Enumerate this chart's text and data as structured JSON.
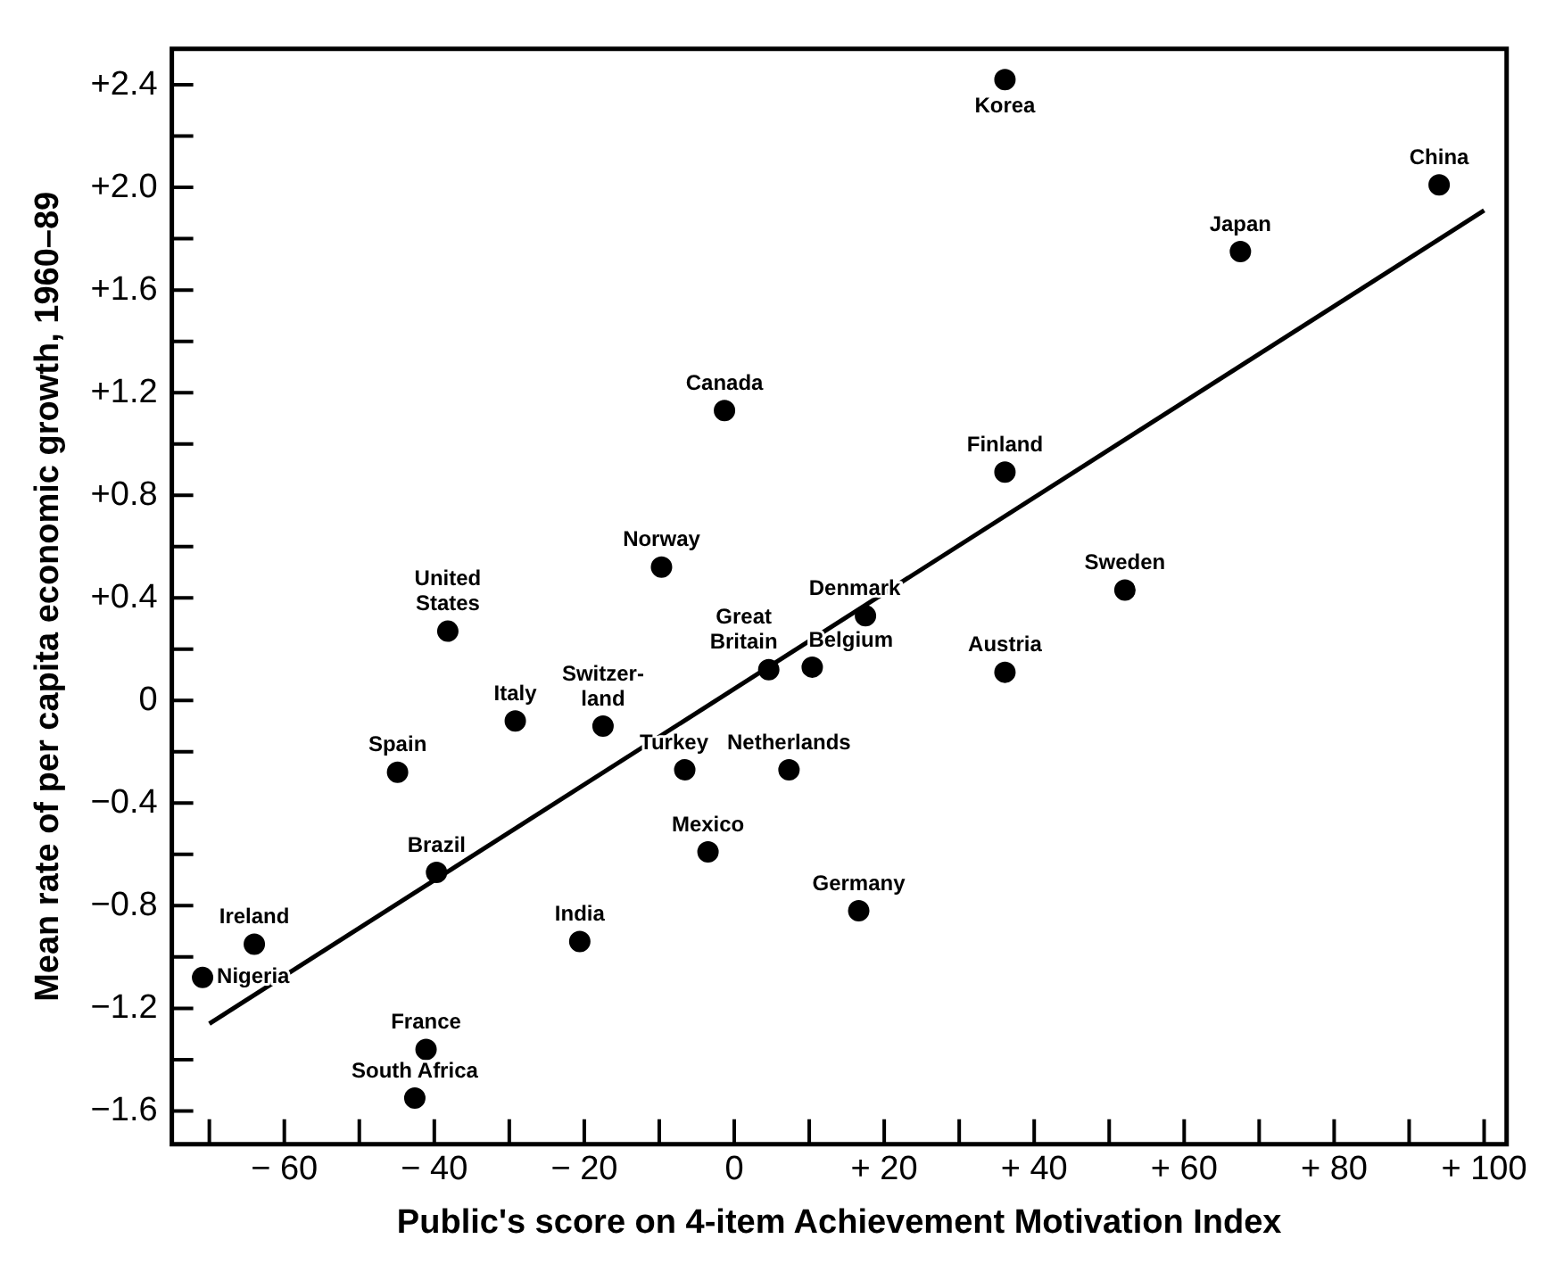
{
  "chart_data": {
    "type": "scatter",
    "xlabel": "Public's score on 4-item Achievement Motivation Index",
    "ylabel": "Mean rate of per capita economic growth, 1960–89",
    "xlim": [
      -75,
      103
    ],
    "ylim": [
      -1.73,
      2.54
    ],
    "xticks": [
      {
        "value": -70,
        "label": null
      },
      {
        "value": -60,
        "label": "− 60"
      },
      {
        "value": -50,
        "label": null
      },
      {
        "value": -40,
        "label": "− 40"
      },
      {
        "value": -30,
        "label": null
      },
      {
        "value": -20,
        "label": "− 20"
      },
      {
        "value": -10,
        "label": null
      },
      0,
      {
        "value": 10,
        "label": null
      },
      {
        "value": 20,
        "label": "+ 20"
      },
      {
        "value": 30,
        "label": null
      },
      {
        "value": 40,
        "label": "+ 40"
      },
      {
        "value": 50,
        "label": null
      },
      {
        "value": 60,
        "label": "+ 60"
      },
      {
        "value": 70,
        "label": null
      },
      {
        "value": 80,
        "label": "+ 80"
      },
      {
        "value": 90,
        "label": null
      },
      {
        "value": 100,
        "label": "+ 100"
      }
    ],
    "yticks": [
      {
        "value": -1.6,
        "label": "−1.6"
      },
      {
        "value": -1.4,
        "label": null
      },
      {
        "value": -1.2,
        "label": "−1.2"
      },
      {
        "value": -1.0,
        "label": null
      },
      {
        "value": -0.8,
        "label": "−0.8"
      },
      {
        "value": -0.6,
        "label": null
      },
      {
        "value": -0.4,
        "label": "−0.4"
      },
      {
        "value": -0.2,
        "label": null
      },
      0,
      {
        "value": 0.2,
        "label": null
      },
      {
        "value": 0.4,
        "label": "+0.4"
      },
      {
        "value": 0.6,
        "label": null
      },
      {
        "value": 0.8,
        "label": "+0.8"
      },
      {
        "value": 1.0,
        "label": null
      },
      {
        "value": 1.2,
        "label": "+1.2"
      },
      {
        "value": 1.4,
        "label": null
      },
      {
        "value": 1.6,
        "label": "+1.6"
      },
      {
        "value": 1.8,
        "label": null
      },
      {
        "value": 2.0,
        "label": "+2.0"
      },
      {
        "value": 2.2,
        "label": null
      },
      {
        "value": 2.4,
        "label": "+2.4"
      }
    ],
    "grid": false,
    "legend": false,
    "marker": "circle",
    "series": [
      {
        "type": "scatter",
        "color": "#000000",
        "x": [
          36.1,
          94,
          67.5,
          -1.3,
          36.1,
          -9.7,
          52.1,
          17.5,
          4.6,
          10.4,
          36.1,
          -38.2,
          -29.2,
          -17.5,
          -44.9,
          -6.6,
          7.3,
          -3.5,
          -39.7,
          16.6,
          -20.6,
          -64.0,
          -70.9,
          -41.1,
          -42.6
        ],
        "values": [
          2.42,
          2.01,
          1.75,
          1.13,
          0.89,
          0.52,
          0.43,
          0.33,
          0.12,
          0.13,
          0.11,
          0.27,
          -0.08,
          -0.1,
          -0.28,
          -0.27,
          -0.27,
          -0.59,
          -0.67,
          -0.82,
          -0.94,
          -0.95,
          -1.08,
          -1.36,
          -1.55
        ]
      },
      {
        "type": "line",
        "color": "#000000",
        "marker": "none",
        "line_style": "solid",
        "x": [
          -70,
          100
        ],
        "values": [
          -1.26,
          1.91
        ]
      }
    ],
    "annotations": [
      {
        "text": "Korea",
        "x": 36.1,
        "y": 2.42
      },
      {
        "text": "China",
        "x": 94,
        "y": 2.01
      },
      {
        "text": "Japan",
        "x": 67.5,
        "y": 1.75
      },
      {
        "text": "Canada",
        "x": -1.3,
        "y": 1.13
      },
      {
        "text": "Finland",
        "x": 36.1,
        "y": 0.89
      },
      {
        "text": "Norway",
        "x": -9.7,
        "y": 0.52
      },
      {
        "text": "Sweden",
        "x": 52.1,
        "y": 0.43
      },
      {
        "text": "Denmark",
        "x": 17.5,
        "y": 0.33
      },
      {
        "text": "Great\nBritain",
        "x": 4.6,
        "y": 0.12
      },
      {
        "text": "Belgium",
        "x": 10.4,
        "y": 0.13
      },
      {
        "text": "Austria",
        "x": 36.1,
        "y": 0.11
      },
      {
        "text": "United\nStates",
        "x": -38.2,
        "y": 0.27
      },
      {
        "text": "Italy",
        "x": -29.2,
        "y": -0.08
      },
      {
        "text": "Switzer-\nland",
        "x": -17.5,
        "y": -0.1
      },
      {
        "text": "Spain",
        "x": -44.9,
        "y": -0.28
      },
      {
        "text": "Turkey",
        "x": -6.6,
        "y": -0.27
      },
      {
        "text": "Netherlands",
        "x": 7.3,
        "y": -0.27
      },
      {
        "text": "Mexico",
        "x": -3.5,
        "y": -0.59
      },
      {
        "text": "Brazil",
        "x": -39.7,
        "y": -0.67
      },
      {
        "text": "Germany",
        "x": 16.6,
        "y": -0.82
      },
      {
        "text": "India",
        "x": -20.6,
        "y": -0.94
      },
      {
        "text": "Ireland",
        "x": -64.0,
        "y": -0.95
      },
      {
        "text": "Nigeria",
        "x": -70.9,
        "y": -1.08
      },
      {
        "text": "France",
        "x": -41.1,
        "y": -1.36
      },
      {
        "text": "South Africa",
        "x": -42.6,
        "y": -1.55
      }
    ]
  }
}
